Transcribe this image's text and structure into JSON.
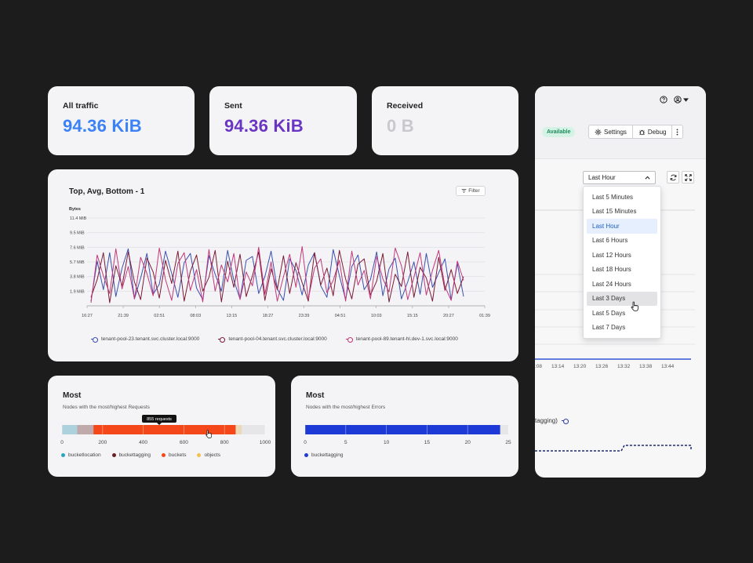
{
  "stats": [
    {
      "label": "All traffic",
      "value": "94.36 KiB",
      "color": "#3b82f6"
    },
    {
      "label": "Sent",
      "value": "94.36 KiB",
      "color": "#6b35c4"
    },
    {
      "label": "Received",
      "value": "0 B",
      "color": "#c9c9cd"
    }
  ],
  "traffic_chart": {
    "title": "Top, Avg, Bottom - 1",
    "filter_label": "Filter",
    "filter_icon": "filter-icon",
    "y_unit": "Bytes"
  },
  "chart_data": [
    {
      "type": "line",
      "title": "Top, Avg, Bottom - 1",
      "ylabel": "Bytes",
      "y_ticks": [
        "1.9 MiB",
        "3.8 MiB",
        "5.7 MiB",
        "7.6 MiB",
        "9.5 MiB",
        "11.4 MiB"
      ],
      "ylim": [
        0,
        11.4
      ],
      "x_ticks": [
        "16:27",
        "21:39",
        "02:51",
        "08:03",
        "13:15",
        "18:27",
        "23:39",
        "04:51",
        "10:03",
        "15:15",
        "20:27",
        "01:39"
      ],
      "grid": true,
      "legend_position": "bottom",
      "series": [
        {
          "name": "tenant-pool-23.tenant.svc.cluster.local:9000",
          "color": "#3b4fb0",
          "values": [
            0.6,
            5.8,
            2.1,
            6.9,
            1.2,
            4.9,
            7.4,
            0.9,
            3.6,
            6.8,
            1.5,
            2.8,
            7.1,
            4.2,
            1.1,
            5.6,
            6.8,
            2.3,
            0.8,
            6.5,
            4.1,
            1.9,
            7.2,
            3.3,
            0.9,
            5.9,
            6.4,
            1.6,
            3.8,
            7.1,
            2.2,
            0.7,
            6.1,
            4.6,
            1.4,
            5.3,
            6.9,
            2.6,
            1.1,
            7.3,
            3.9,
            0.8,
            5.1,
            6.6,
            2.1,
            3.4,
            7.0,
            1.3,
            4.8,
            6.2,
            0.9,
            3.1,
            5.7,
            1.5,
            6.8,
            2.4,
            4.3,
            6.1,
            0.8,
            5.5,
            1.2
          ]
        },
        {
          "name": "tenant-pool-04.tenant.svc.cluster.local:9000",
          "color": "#7a1a35",
          "values": [
            1.1,
            3.4,
            6.9,
            0.4,
            5.2,
            2.6,
            7.0,
            3.1,
            0.8,
            6.2,
            4.4,
            1.0,
            5.9,
            2.9,
            7.1,
            0.6,
            4.5,
            6.6,
            1.9,
            3.7,
            7.2,
            0.5,
            5.8,
            2.4,
            6.7,
            1.2,
            3.9,
            7.0,
            0.7,
            4.8,
            2.1,
            6.5,
            1.6,
            5.6,
            3.0,
            0.6,
            6.9,
            2.7,
            4.9,
            1.3,
            7.2,
            3.5,
            0.9,
            5.4,
            6.1,
            1.4,
            3.2,
            6.8,
            0.5,
            4.1,
            2.5,
            7.0,
            1.1,
            5.0,
            3.6,
            0.6,
            6.3,
            2.0,
            4.7,
            1.6,
            3.8
          ]
        },
        {
          "name": "tenant-pool-89.tenant-hl.dev-1.svc.local:9000",
          "color": "#c2387a",
          "values": [
            0.4,
            6.6,
            3.9,
            1.6,
            7.4,
            2.2,
            5.1,
            0.9,
            6.3,
            4.2,
            1.3,
            7.5,
            3.4,
            0.7,
            5.5,
            6.9,
            2.0,
            4.7,
            0.5,
            7.3,
            1.9,
            5.3,
            3.1,
            6.8,
            0.8,
            4.4,
            2.6,
            7.6,
            1.5,
            5.7,
            0.6,
            3.8,
            6.7,
            2.4,
            7.7,
            0.9,
            4.9,
            6.1,
            1.7,
            3.3,
            5.9,
            0.6,
            7.1,
            2.7,
            4.6,
            0.9,
            6.4,
            3.5,
            1.8,
            7.5,
            5.2,
            0.8,
            3.7,
            6.9,
            1.4,
            4.6,
            7.2,
            2.5,
            0.7,
            5.8,
            3.3
          ]
        }
      ]
    },
    {
      "type": "bar",
      "title": "Most",
      "subtitle": "Nodes with the most/highest Requests",
      "xlim": [
        0,
        1000
      ],
      "x_ticks": [
        "0",
        "200",
        "400",
        "600",
        "800",
        "1000"
      ],
      "series": [
        {
          "name": "bucketlocation",
          "values": [
            75
          ],
          "color": "#2aa4c4"
        },
        {
          "name": "buckettagging",
          "values": [
            80
          ],
          "color": "#6b1f1f"
        },
        {
          "name": "buckets",
          "values": [
            700
          ],
          "color": "#f5481a"
        },
        {
          "name": "objects",
          "values": [
            30
          ],
          "color": "#f4c04c"
        }
      ],
      "tooltip": "855 requests"
    },
    {
      "type": "bar",
      "title": "Most",
      "subtitle": "Nodes with the most/highest Errors",
      "xlim": [
        0,
        25
      ],
      "x_ticks": [
        "0",
        "5",
        "10",
        "15",
        "20",
        "25"
      ],
      "series": [
        {
          "name": "buckettagging",
          "values": [
            24
          ],
          "color": "#1e3ad6"
        }
      ]
    }
  ],
  "side_panel": {
    "help_icon": "help-circle-icon",
    "user_icon": "user-circle-icon",
    "status_badge": "Available",
    "settings_label": "Settings",
    "debug_label": "Debug",
    "time_range_value": "Last Hour",
    "refresh_icon": "refresh-icon",
    "fullscreen_icon": "fullscreen-icon",
    "time_options": [
      "Last 5 Minutes",
      "Last 15 Minutes",
      "Last Hour",
      "Last 6 Hours",
      "Last 12 Hours",
      "Last 18 Hours",
      "Last 24 Hours",
      "Last 3 Days",
      "Last 5 Days",
      "Last 7 Days"
    ],
    "selected_option": "Last Hour",
    "hovered_option": "Last 3 Days",
    "partial_axis_ticks": [
      ":08",
      "13:14",
      "13:20",
      "13:26",
      "13:32",
      "13:38",
      "13:44"
    ],
    "partial_legend": "tagging)"
  }
}
